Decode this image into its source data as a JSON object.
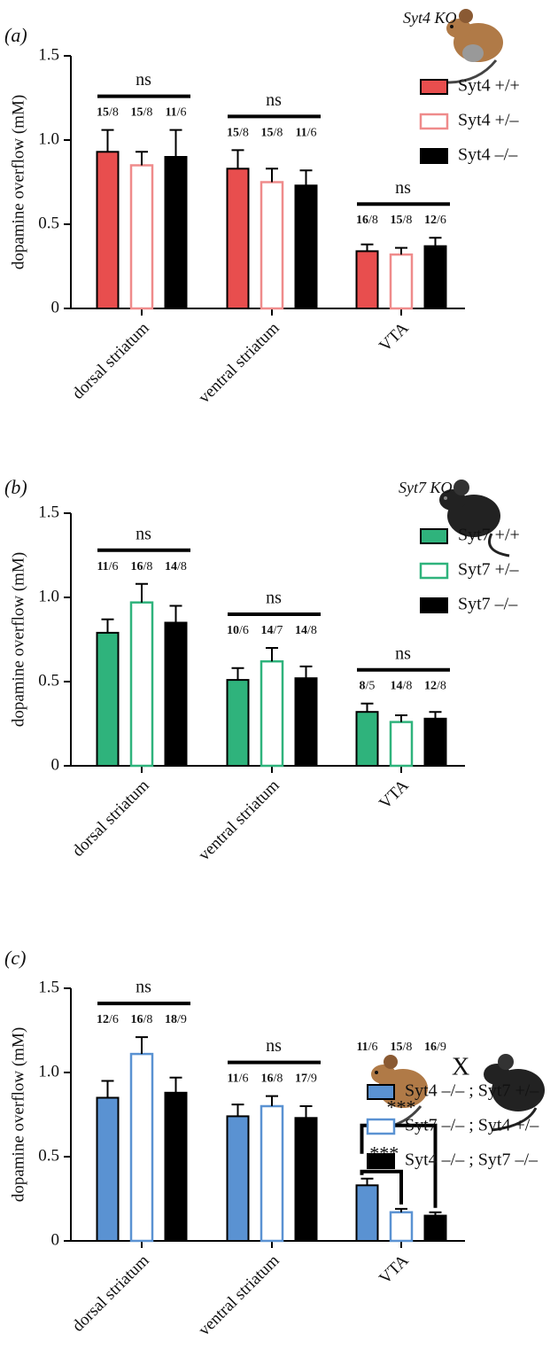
{
  "chart_data": [
    {
      "type": "bar",
      "panel_label": "(a)",
      "title": "Syt4 KO",
      "y_label": "dopamine overflow (mM)",
      "categories": [
        "dorsal striatum",
        "ventral striatum",
        "VTA"
      ],
      "ylim": [
        0,
        1.5
      ],
      "yticks": [
        0,
        0.5,
        {
          "value": 1,
          "label": "1.0"
        },
        1.5
      ],
      "legend": "upper right",
      "group_labels": [
        "ns",
        "ns",
        "ns"
      ],
      "series": [
        {
          "name": "Syt4 +/+",
          "color": "#e84e4e",
          "style": "filled",
          "values": [
            0.93,
            0.83,
            0.34
          ],
          "errors": [
            0.13,
            0.11,
            0.04
          ],
          "n_labels": [
            "15/8",
            "15/8",
            "16/8"
          ]
        },
        {
          "name": "Syt4 +/–",
          "color": "#ef8b8b",
          "style": "outline",
          "values": [
            0.85,
            0.75,
            0.32
          ],
          "errors": [
            0.08,
            0.08,
            0.04
          ],
          "n_labels": [
            "15/8",
            "15/8",
            "15/8"
          ]
        },
        {
          "name": "Syt4 –/–",
          "color": "#000000",
          "style": "filled",
          "values": [
            0.9,
            0.73,
            0.37
          ],
          "errors": [
            0.16,
            0.09,
            0.05
          ],
          "n_labels": [
            "11/6",
            "11/6",
            "12/6"
          ]
        }
      ]
    },
    {
      "type": "bar",
      "panel_label": "(b)",
      "title": "Syt7 KO",
      "y_label": "dopamine overflow (mM)",
      "categories": [
        "dorsal striatum",
        "ventral striatum",
        "VTA"
      ],
      "ylim": [
        0,
        1.5
      ],
      "yticks": [
        0,
        0.5,
        {
          "value": 1,
          "label": "1.0"
        },
        1.5
      ],
      "legend": "upper right",
      "group_labels": [
        "ns",
        "ns",
        "ns"
      ],
      "series": [
        {
          "name": "Syt7 +/+",
          "color": "#2fb37c",
          "style": "filled",
          "values": [
            0.79,
            0.51,
            0.32
          ],
          "errors": [
            0.08,
            0.07,
            0.05
          ],
          "n_labels": [
            "11/6",
            "10/6",
            "8/5"
          ]
        },
        {
          "name": "Syt7 +/–",
          "color": "#2fb37c",
          "style": "outline",
          "values": [
            0.97,
            0.62,
            0.26
          ],
          "errors": [
            0.11,
            0.08,
            0.04
          ],
          "n_labels": [
            "16/8",
            "14/7",
            "14/8"
          ]
        },
        {
          "name": "Syt7 –/–",
          "color": "#000000",
          "style": "filled",
          "values": [
            0.85,
            0.52,
            0.28
          ],
          "errors": [
            0.1,
            0.07,
            0.04
          ],
          "n_labels": [
            "14/8",
            "14/8",
            "12/8"
          ]
        }
      ]
    },
    {
      "type": "bar",
      "panel_label": "(c)",
      "title": "X",
      "y_label": "dopamine overflow (mM)",
      "categories": [
        "dorsal striatum",
        "ventral striatum",
        "VTA"
      ],
      "ylim": [
        0,
        1.5
      ],
      "yticks": [
        0,
        0.5,
        {
          "value": 1,
          "label": "1.0"
        },
        1.5
      ],
      "legend": "upper right",
      "group_labels": [
        "ns",
        "ns"
      ],
      "comparisons": [
        "***",
        "***"
      ],
      "series": [
        {
          "name": "Syt4 –/– ; Syt7 +/–",
          "color": "#5a92d2",
          "style": "filled",
          "values": [
            0.85,
            0.74,
            0.33
          ],
          "errors": [
            0.1,
            0.07,
            0.04
          ],
          "n_labels": [
            "12/6",
            "11/6",
            "11/6"
          ]
        },
        {
          "name": "Syt7 –/– ; Syt4 +/–",
          "color": "#5a92d2",
          "style": "outline",
          "values": [
            1.11,
            0.8,
            0.17
          ],
          "errors": [
            0.1,
            0.06,
            0.02
          ],
          "n_labels": [
            "16/8",
            "16/8",
            "15/8"
          ]
        },
        {
          "name": "Syt4 –/– ; Syt7 –/–",
          "color": "#000000",
          "style": "filled",
          "values": [
            0.88,
            0.73,
            0.15
          ],
          "errors": [
            0.09,
            0.07,
            0.02
          ],
          "n_labels": [
            "18/9",
            "17/9",
            "16/9"
          ]
        }
      ]
    }
  ]
}
